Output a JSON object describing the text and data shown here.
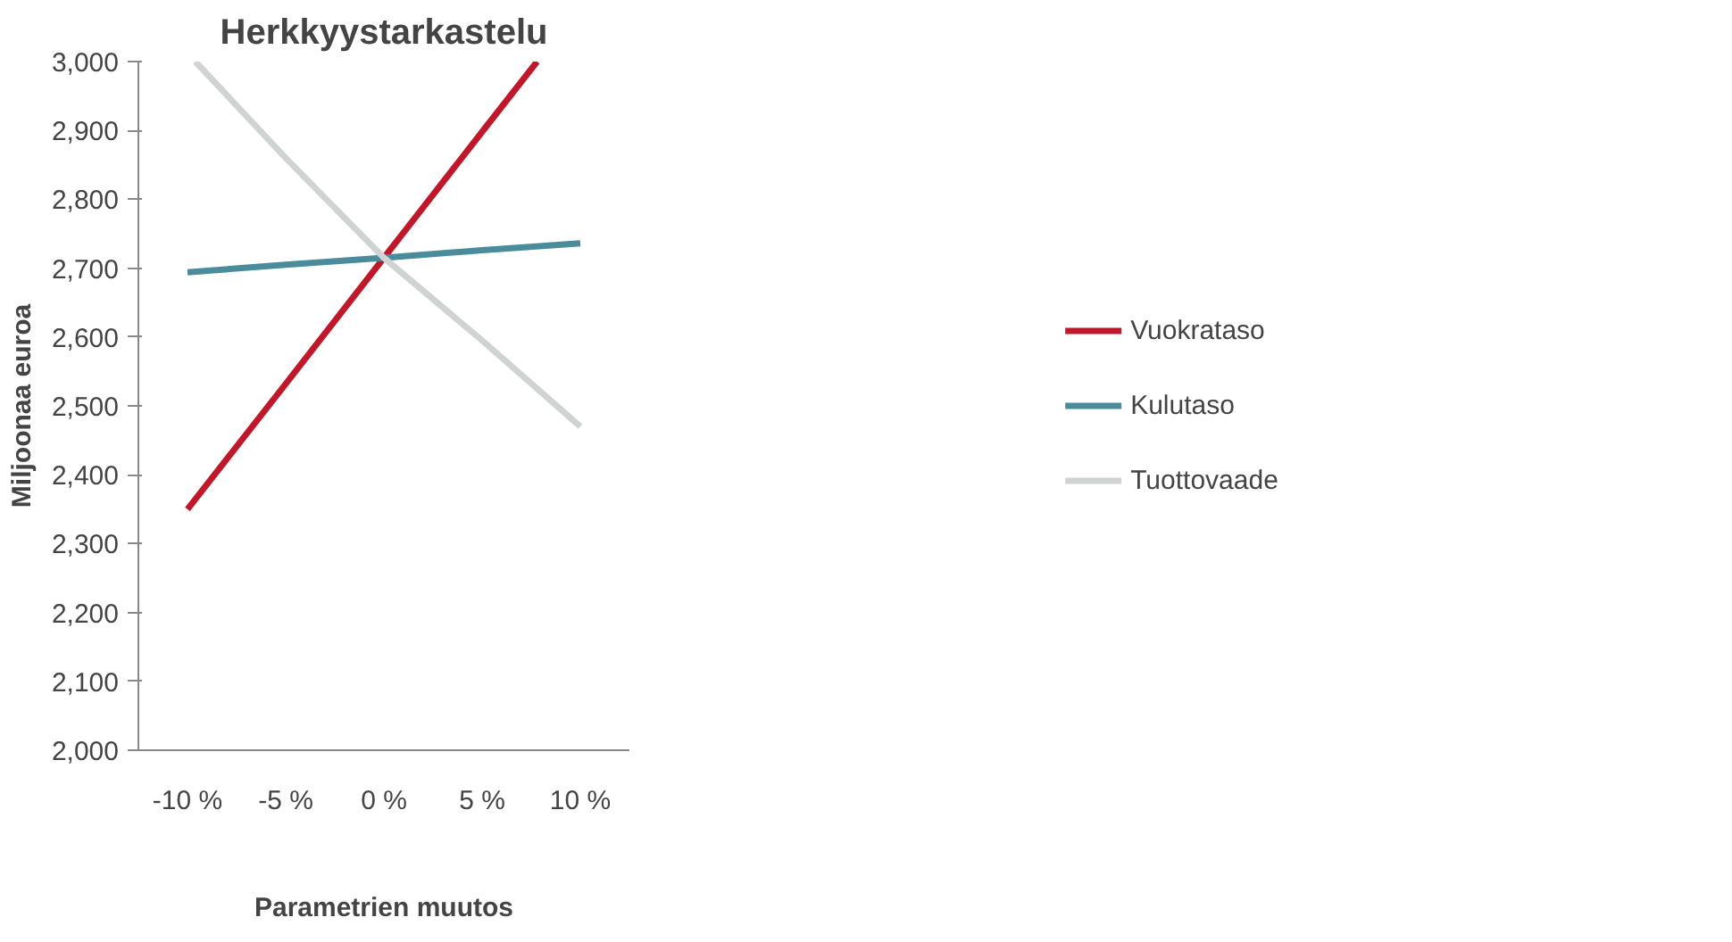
{
  "chart_data": {
    "type": "line",
    "title": "Herkkyystarkastelu",
    "xlabel": "Parametrien muutos",
    "ylabel": "Miljoonaa euroa",
    "xlim": [
      -12.5,
      12.5
    ],
    "xticks": [
      {
        "value": -10,
        "label": "-10 %"
      },
      {
        "value": -5,
        "label": "-5 %"
      },
      {
        "value": 0,
        "label": "0 %"
      },
      {
        "value": 5,
        "label": "5 %"
      },
      {
        "value": 10,
        "label": "10 %"
      }
    ],
    "ylim": [
      2000,
      3000
    ],
    "yticks": [
      {
        "value": 2000,
        "label": "2,000"
      },
      {
        "value": 2100,
        "label": "2,100"
      },
      {
        "value": 2200,
        "label": "2,200"
      },
      {
        "value": 2300,
        "label": "2,300"
      },
      {
        "value": 2400,
        "label": "2,400"
      },
      {
        "value": 2500,
        "label": "2,500"
      },
      {
        "value": 2600,
        "label": "2,600"
      },
      {
        "value": 2700,
        "label": "2,700"
      },
      {
        "value": 2800,
        "label": "2,800"
      },
      {
        "value": 2900,
        "label": "2,900"
      },
      {
        "value": 3000,
        "label": "3,000"
      }
    ],
    "grid": false,
    "legend": "right",
    "marker": "none",
    "line_style": "solid",
    "series": [
      {
        "name": "Vuokrataso",
        "color": "#c0182a",
        "x": [
          -10,
          -5,
          0,
          5,
          7.8
        ],
        "values": [
          2350,
          2532,
          2715,
          2898,
          3000
        ]
      },
      {
        "name": "Kulutaso",
        "color": "#4a8c9c",
        "x": [
          -10,
          -5,
          0,
          5,
          10
        ],
        "values": [
          2694,
          2705,
          2715,
          2726,
          2736
        ]
      },
      {
        "name": "Tuottovaade",
        "color": "#d0d3d3",
        "x": [
          -9.6,
          -5,
          0,
          5,
          10
        ],
        "values": [
          3000,
          2860,
          2715,
          2595,
          2470
        ]
      }
    ]
  }
}
